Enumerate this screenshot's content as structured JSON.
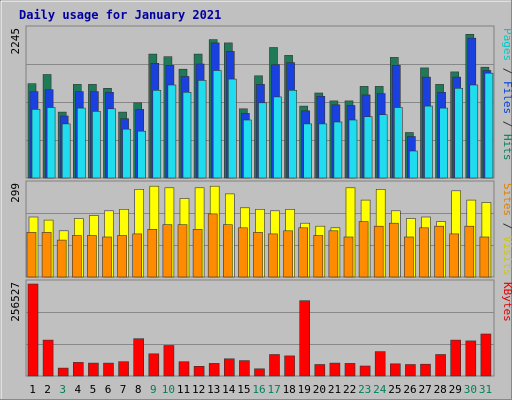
{
  "chart_data": {
    "type": "bar",
    "title": "Daily usage for January 2021",
    "categories": [
      "1",
      "2",
      "3",
      "4",
      "5",
      "6",
      "7",
      "8",
      "9",
      "10",
      "11",
      "12",
      "13",
      "14",
      "15",
      "16",
      "17",
      "18",
      "19",
      "20",
      "21",
      "22",
      "23",
      "24",
      "25",
      "26",
      "27",
      "28",
      "29",
      "30",
      "31"
    ],
    "weekend_days": [
      "3",
      "9",
      "10",
      "16",
      "17",
      "23",
      "24",
      "30",
      "31"
    ],
    "panels": [
      {
        "id": "hits",
        "max_label": "2245",
        "ymax": 2245,
        "right_labels": [
          {
            "text": "Pages",
            "color": "#00c8c8"
          },
          {
            "text": " / ",
            "color": "#333333"
          },
          {
            "text": "Files",
            "color": "#0040e0"
          },
          {
            "text": " / ",
            "color": "#333333"
          },
          {
            "text": "Hits",
            "color": "#008060"
          }
        ],
        "series": [
          {
            "name": "Hits",
            "color": "#1f7a57",
            "values": [
              1430,
              1570,
              1000,
              1420,
              1420,
              1360,
              1000,
              1140,
              1880,
              1840,
              1650,
              1880,
              2100,
              2050,
              1050,
              1550,
              1980,
              1860,
              1090,
              1290,
              1170,
              1170,
              1390,
              1390,
              1830,
              690,
              1670,
              1420,
              1610,
              2180,
              1680
            ]
          },
          {
            "name": "Files",
            "color": "#1a40e0",
            "values": [
              1310,
              1340,
              940,
              1310,
              1310,
              1300,
              900,
              1040,
              1740,
              1710,
              1540,
              1730,
              2050,
              1920,
              980,
              1420,
              1720,
              1750,
              1020,
              1240,
              1110,
              1100,
              1260,
              1280,
              1710,
              630,
              1530,
              1300,
              1530,
              2120,
              1630
            ]
          },
          {
            "name": "Pages",
            "color": "#20dcef",
            "values": [
              1040,
              1070,
              820,
              1060,
              1010,
              1050,
              740,
              710,
              1330,
              1410,
              1300,
              1480,
              1630,
              1500,
              880,
              1140,
              1230,
              1330,
              820,
              820,
              850,
              880,
              930,
              960,
              1070,
              410,
              1090,
              1060,
              1360,
              1410,
              1590
            ]
          }
        ]
      },
      {
        "id": "visits",
        "max_label": "299",
        "ymax": 299,
        "right_labels": [
          {
            "text": "Sites",
            "color": "#e08000"
          },
          {
            "text": " / ",
            "color": "#333333"
          },
          {
            "text": "Visits",
            "color": "#d0c800"
          }
        ],
        "series": [
          {
            "name": "Visits",
            "color": "#ffff00",
            "values": [
              195,
              185,
              150,
              190,
              200,
              215,
              220,
              285,
              295,
              290,
              255,
              290,
              295,
              270,
              225,
              220,
              215,
              220,
              175,
              165,
              160,
              290,
              250,
              285,
              215,
              190,
              195,
              180,
              280,
              250,
              242
            ]
          },
          {
            "name": "Sites",
            "color": "#ff8c00",
            "values": [
              145,
              145,
              120,
              135,
              135,
              130,
              135,
              140,
              155,
              170,
              170,
              155,
              205,
              170,
              160,
              145,
              140,
              150,
              160,
              135,
              150,
              130,
              180,
              165,
              175,
              130,
              160,
              165,
              140,
              165,
              130
            ]
          }
        ]
      },
      {
        "id": "kbytes",
        "max_label": "256527",
        "ymax": 256527,
        "right_labels": [
          {
            "text": "KBytes",
            "color": "#e00000"
          }
        ],
        "series": [
          {
            "name": "KBytes",
            "color": "#ff0000",
            "values": [
              256527,
              100000,
              22000,
              38000,
              36000,
              36000,
              40000,
              104000,
              62000,
              85000,
              40000,
              27000,
              35000,
              48000,
              43000,
              20000,
              60000,
              56000,
              210000,
              32000,
              36000,
              35000,
              28000,
              68000,
              34000,
              32000,
              33000,
              60000,
              100000,
              98000,
              117000
            ]
          }
        ]
      }
    ],
    "colors": {
      "weekday_label": "#000000",
      "weekend_label": "#00805a"
    }
  }
}
